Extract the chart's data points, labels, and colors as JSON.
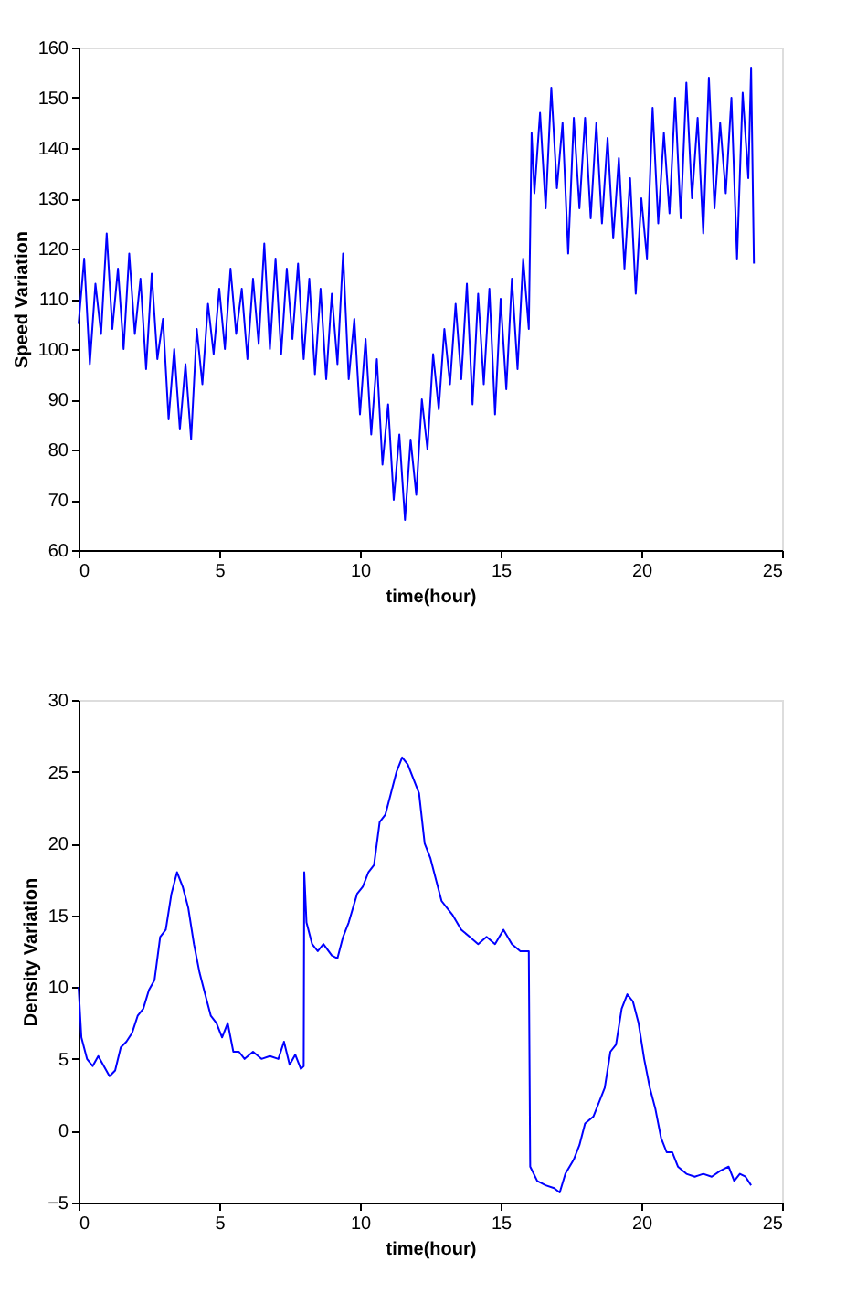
{
  "chart_data": [
    {
      "type": "line",
      "xlabel": "time(hour)",
      "ylabel": "Speed Variation",
      "xlim": [
        0,
        25
      ],
      "ylim": [
        60,
        160
      ],
      "xticks": [
        0,
        5,
        10,
        15,
        20,
        25
      ],
      "yticks": [
        60,
        70,
        80,
        90,
        100,
        110,
        120,
        130,
        140,
        150,
        160
      ],
      "grid": false,
      "x": [
        0,
        0.2,
        0.4,
        0.6,
        0.8,
        1.0,
        1.2,
        1.4,
        1.6,
        1.8,
        2.0,
        2.2,
        2.4,
        2.6,
        2.8,
        3.0,
        3.2,
        3.4,
        3.6,
        3.8,
        4.0,
        4.2,
        4.4,
        4.6,
        4.8,
        5.0,
        5.2,
        5.4,
        5.6,
        5.8,
        6.0,
        6.2,
        6.4,
        6.6,
        6.8,
        7.0,
        7.2,
        7.4,
        7.6,
        7.8,
        8.0,
        8.2,
        8.4,
        8.6,
        8.8,
        9.0,
        9.2,
        9.4,
        9.6,
        9.8,
        10.0,
        10.2,
        10.4,
        10.6,
        10.8,
        11.0,
        11.2,
        11.4,
        11.6,
        11.8,
        12.0,
        12.2,
        12.4,
        12.6,
        12.8,
        13.0,
        13.2,
        13.4,
        13.6,
        13.8,
        14.0,
        14.2,
        14.4,
        14.6,
        14.8,
        15.0,
        15.2,
        15.4,
        15.6,
        15.8,
        16.0,
        16.1,
        16.2,
        16.4,
        16.6,
        16.8,
        17.0,
        17.2,
        17.4,
        17.6,
        17.8,
        18.0,
        18.2,
        18.4,
        18.6,
        18.8,
        19.0,
        19.2,
        19.4,
        19.6,
        19.8,
        20.0,
        20.2,
        20.4,
        20.6,
        20.8,
        21.0,
        21.2,
        21.4,
        21.6,
        21.8,
        22.0,
        22.2,
        22.4,
        22.6,
        22.8,
        23.0,
        23.2,
        23.4,
        23.6,
        23.8,
        23.9,
        24.0
      ],
      "series": [
        {
          "color": "#0000ff",
          "values": [
            105,
            118,
            97,
            113,
            103,
            123,
            104,
            116,
            100,
            119,
            103,
            114,
            96,
            115,
            98,
            106,
            86,
            100,
            84,
            97,
            82,
            104,
            93,
            109,
            99,
            112,
            100,
            116,
            103,
            112,
            98,
            114,
            101,
            121,
            100,
            118,
            99,
            116,
            102,
            117,
            98,
            114,
            95,
            112,
            94,
            111,
            97,
            119,
            94,
            106,
            87,
            102,
            83,
            98,
            77,
            89,
            70,
            83,
            66,
            82,
            71,
            90,
            80,
            99,
            88,
            104,
            93,
            109,
            94,
            113,
            89,
            111,
            93,
            112,
            87,
            110,
            92,
            114,
            96,
            118,
            104,
            143,
            131,
            147,
            128,
            152,
            132,
            145,
            119,
            146,
            128,
            146,
            126,
            145,
            125,
            142,
            122,
            138,
            116,
            134,
            111,
            130,
            118,
            148,
            125,
            143,
            127,
            150,
            126,
            153,
            130,
            146,
            123,
            154,
            128,
            145,
            131,
            150,
            118,
            151,
            134,
            156,
            117
          ]
        }
      ]
    },
    {
      "type": "line",
      "xlabel": "time(hour)",
      "ylabel": "Density Variation",
      "xlim": [
        0,
        25
      ],
      "ylim": [
        -5,
        30
      ],
      "xticks": [
        0,
        5,
        10,
        15,
        20,
        25
      ],
      "yticks": [
        -5,
        0,
        5,
        10,
        15,
        20,
        25,
        30
      ],
      "grid": false,
      "x": [
        0,
        0.1,
        0.3,
        0.5,
        0.7,
        0.9,
        1.1,
        1.3,
        1.5,
        1.7,
        1.9,
        2.1,
        2.3,
        2.5,
        2.7,
        2.9,
        3.1,
        3.3,
        3.5,
        3.7,
        3.9,
        4.1,
        4.3,
        4.5,
        4.7,
        4.9,
        5.1,
        5.3,
        5.5,
        5.7,
        5.9,
        6.2,
        6.5,
        6.8,
        7.1,
        7.3,
        7.5,
        7.7,
        7.9,
        8.0,
        8.02,
        8.1,
        8.3,
        8.5,
        8.7,
        9.0,
        9.2,
        9.4,
        9.6,
        9.9,
        10.1,
        10.3,
        10.5,
        10.7,
        10.9,
        11.1,
        11.3,
        11.5,
        11.7,
        11.9,
        12.1,
        12.3,
        12.5,
        12.7,
        12.9,
        13.1,
        13.3,
        13.6,
        13.9,
        14.2,
        14.5,
        14.8,
        15.1,
        15.4,
        15.7,
        16.0,
        16.05,
        16.3,
        16.6,
        16.9,
        17.1,
        17.3,
        17.6,
        17.8,
        18.0,
        18.3,
        18.5,
        18.7,
        18.9,
        19.1,
        19.3,
        19.5,
        19.7,
        19.9,
        20.1,
        20.3,
        20.5,
        20.7,
        20.9,
        21.1,
        21.3,
        21.6,
        21.9,
        22.2,
        22.5,
        22.8,
        23.1,
        23.3,
        23.5,
        23.7,
        23.9
      ],
      "series": [
        {
          "color": "#0000ff",
          "values": [
            10,
            6.5,
            5,
            4.5,
            5.2,
            4.5,
            3.8,
            4.2,
            5.8,
            6.2,
            6.8,
            8,
            8.5,
            9.8,
            10.5,
            13.5,
            14,
            16.5,
            18,
            17,
            15.5,
            13,
            11,
            9.5,
            8,
            7.5,
            6.5,
            7.5,
            5.5,
            5.5,
            5,
            5.5,
            5,
            5.2,
            5,
            6.2,
            4.6,
            5.3,
            4.3,
            4.5,
            18,
            14.5,
            13,
            12.5,
            13,
            12.2,
            12,
            13.5,
            14.5,
            16.5,
            17,
            18,
            18.5,
            21.5,
            22,
            23.5,
            25,
            26,
            25.5,
            24.5,
            23.5,
            20,
            19,
            17.5,
            16,
            15.5,
            15,
            14,
            13.5,
            13,
            13.5,
            13,
            14,
            13,
            12.5,
            12.5,
            -2.5,
            -3.5,
            -3.8,
            -4,
            -4.3,
            -3,
            -2,
            -1,
            0.5,
            1,
            2,
            3,
            5.5,
            6,
            8.5,
            9.5,
            9,
            7.5,
            5,
            3,
            1.5,
            -0.5,
            -1.5,
            -1.5,
            -2.5,
            -3,
            -3.2,
            -3,
            -3.2,
            -2.8,
            -2.5,
            -3.5,
            -3,
            -3.2,
            -3.8
          ]
        }
      ]
    }
  ]
}
